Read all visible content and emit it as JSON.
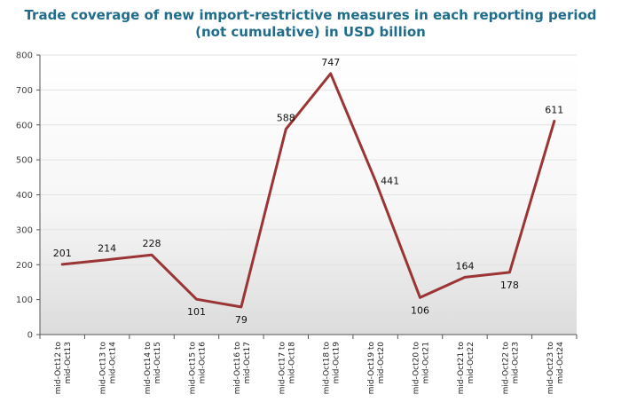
{
  "chart_data": {
    "type": "line",
    "title_line1": "Trade coverage of new import-restrictive measures in each reporting period",
    "title_line2": "(not cumulative) in USD billion",
    "categories": [
      [
        "mid-Oct12 to",
        "mid-Oct13"
      ],
      [
        "mid-Oct13 to",
        "mid-Oct14"
      ],
      [
        "mid-Oct14 to",
        "mid-Oct15"
      ],
      [
        "mid-Oct15 to",
        "mid-Oct16"
      ],
      [
        "mid-Oct16 to",
        "mid-Oct17"
      ],
      [
        "mid-Oct17 to",
        "mid-Oct18"
      ],
      [
        "mid-Oct18 to",
        "mid-Oct19"
      ],
      [
        "mid-Oct19 to",
        "mid-Oct20"
      ],
      [
        "mid-Oct20 to",
        "mid-Oct21"
      ],
      [
        "mid-Oct21 to",
        "mid-Oct22"
      ],
      [
        "mid-Oct22 to",
        "mid-Oct23"
      ],
      [
        "mid-Oct23 to",
        "mid-Oct24"
      ]
    ],
    "series": [
      {
        "values": [
          201,
          214,
          228,
          101,
          79,
          588,
          747,
          441,
          106,
          164,
          178,
          611
        ]
      }
    ],
    "data_labels": [
      "201",
      "214",
      "228",
      "101",
      "79",
      "588",
      "747",
      "441",
      "106",
      "164",
      "178",
      "611"
    ],
    "label_position": [
      "above",
      "above",
      "above",
      "below",
      "below",
      "above",
      "above",
      "right",
      "below",
      "above",
      "below",
      "above"
    ],
    "ylim": [
      0,
      800
    ],
    "yticks": [
      0,
      100,
      200,
      300,
      400,
      500,
      600,
      700,
      800
    ],
    "grid": true,
    "line_color": "#9b3535",
    "title_color": "#1f6d8a"
  }
}
